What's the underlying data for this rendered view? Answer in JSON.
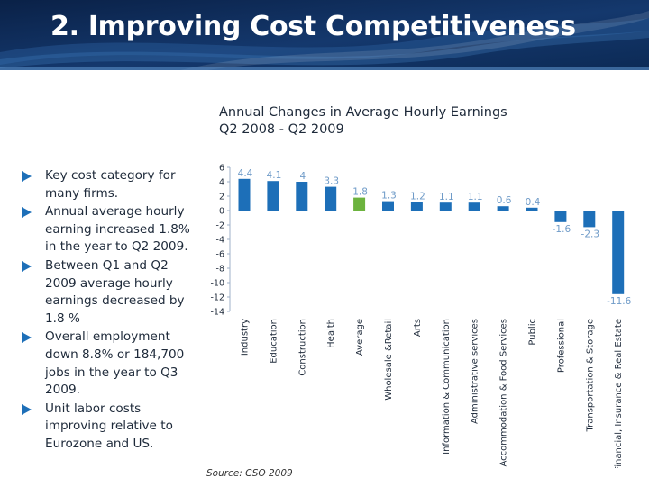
{
  "slide": {
    "title": "2. Improving Cost Competitiveness",
    "bullets": [
      "Key cost category for many firms.",
      "Annual average hourly earning increased 1.8% in the year to Q2 2009.",
      "Between Q1 and Q2 2009 average hourly earnings decreased by 1.8 %",
      "Overall employment down 8.8% or 184,700 jobs in the year to Q3 2009.",
      "Unit labor costs improving relative to Eurozone and US."
    ],
    "source": "Source: CSO 2009"
  },
  "colors": {
    "banner_dark": "#0c2a55",
    "banner_mid": "#16407a",
    "bar_blue": "#1d6fb8",
    "bar_average": "#6cb33e",
    "label_text": "#6f9bc8",
    "bullet_arrow": "#1d6fb8"
  },
  "chart_data": {
    "type": "bar",
    "title": "Annual Changes in Average Hourly Earnings",
    "subtitle": "Q2 2008 - Q2 2009",
    "categories": [
      "Industry",
      "Education",
      "Construction",
      "Health",
      "Average",
      "Wholesale &Retail",
      "Arts",
      "Information & Communication",
      "Administrative services",
      "Accommodation & Food Services",
      "Public",
      "Professional",
      "Transportation & Storage",
      "Financial, Insurance & Real Estate"
    ],
    "values": [
      4.4,
      4.1,
      4,
      3.3,
      1.8,
      1.3,
      1.2,
      1.1,
      1.1,
      0.6,
      0.4,
      -1.6,
      -2.3,
      -11.6
    ],
    "value_labels": [
      "4.4",
      "4.1",
      "4",
      "3.3",
      "1.8",
      "1.3",
      "1.2",
      "1.1",
      "1.1",
      "0.6",
      "0.4",
      "-1.6",
      "-2.3",
      "-11.6"
    ],
    "highlight_category": "Average",
    "ylim": [
      -14,
      6
    ],
    "yticks": [
      "6",
      "4",
      "2",
      "0",
      "-2",
      "-4",
      "-6",
      "-8",
      "-10",
      "-12",
      "-14"
    ],
    "xlabel": "",
    "ylabel": "",
    "grid": false,
    "legend": "none"
  }
}
